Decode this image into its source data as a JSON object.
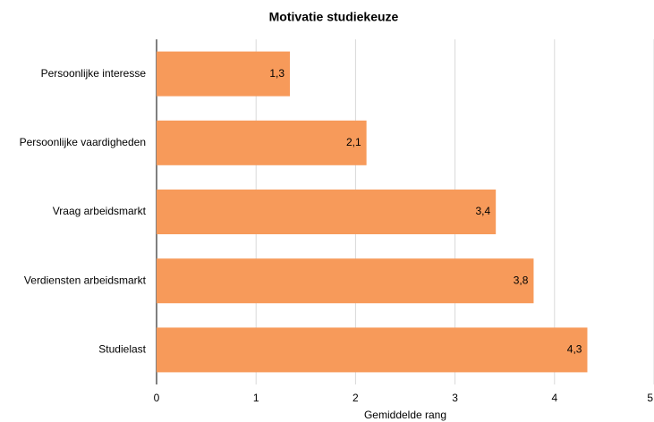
{
  "chart_data": {
    "type": "hbar",
    "title": "Motivatie studiekeuze",
    "x_label": "Gemiddelde rang",
    "categories": [
      "Persoonlijke interesse",
      "Persoonlijke vaardigheden",
      "Vraag arbeidsmarkt",
      "Verdiensten arbeidsmarkt",
      "Studielast"
    ],
    "values": [
      1.34,
      2.11,
      3.41,
      3.79,
      4.33
    ],
    "value_labels": [
      "1,3",
      "2,1",
      "3,4",
      "3,8",
      "4,3"
    ],
    "color": "#f79a5a",
    "xlim": [
      0,
      5
    ],
    "xticks": [
      0,
      1,
      2,
      3,
      4,
      5
    ],
    "grid": true
  }
}
